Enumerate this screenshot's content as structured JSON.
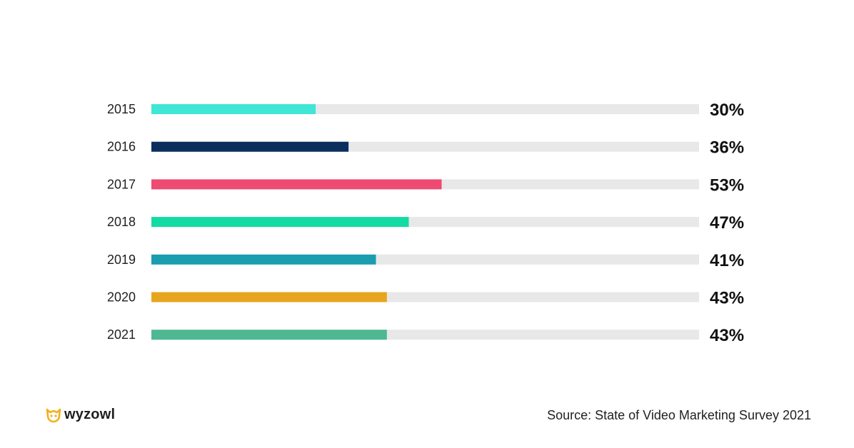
{
  "chart_data": {
    "type": "bar",
    "orientation": "horizontal",
    "categories": [
      "2015",
      "2016",
      "2017",
      "2018",
      "2019",
      "2020",
      "2021"
    ],
    "values": [
      30,
      36,
      53,
      47,
      41,
      43,
      43
    ],
    "value_labels": [
      "30%",
      "36%",
      "53%",
      "47%",
      "41%",
      "43%",
      "43%"
    ],
    "colors": [
      "#40E6D6",
      "#0B2E5C",
      "#EE4A72",
      "#12DBA3",
      "#1A9DAF",
      "#E6A51C",
      "#4DB892"
    ],
    "track_color": "#E8E8E8",
    "xlim": [
      0,
      100
    ],
    "grid": false
  },
  "footer": {
    "source": "Source: State of Video Marketing Survey 2021",
    "logo_text": "wyzowl",
    "logo_icon": "wyzowl-owl-icon",
    "logo_color": "#F2B01E"
  }
}
